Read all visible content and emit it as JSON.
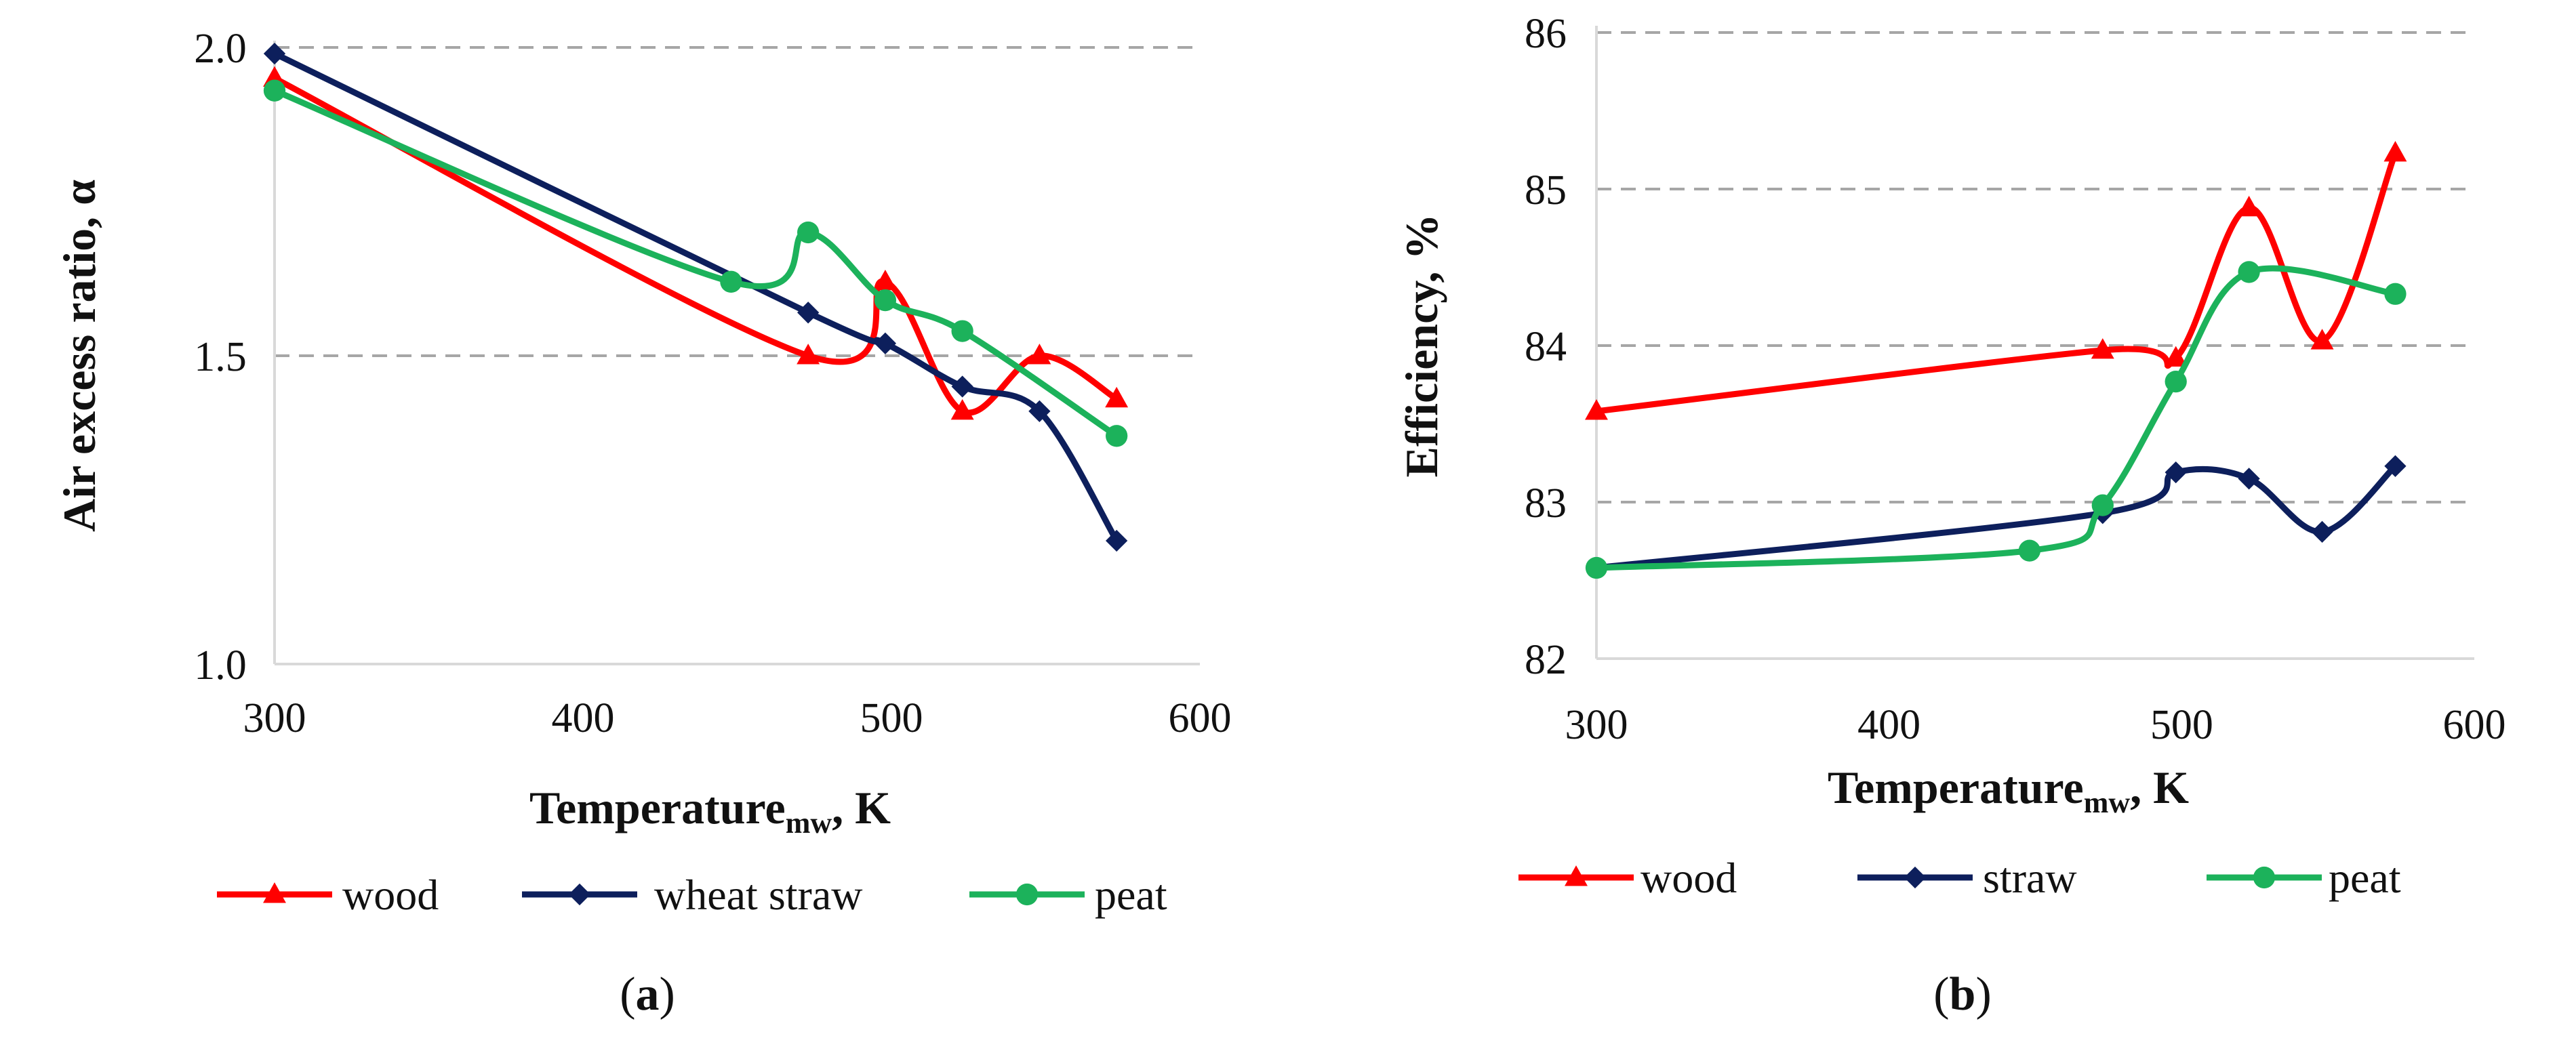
{
  "chart_data": [
    {
      "type": "line",
      "panel_label": {
        "open": "(",
        "letter": "a",
        "close": ")"
      },
      "xlabel": {
        "main": "Temperature",
        "sub": "mw",
        "rest": ", K"
      },
      "ylabel": "Air excess ratio, α",
      "xlim": [
        300,
        600
      ],
      "ylim": [
        1.0,
        2.0
      ],
      "xticks": [
        300,
        400,
        500,
        600
      ],
      "yticks": [
        "1.0",
        "1.5",
        "2.0"
      ],
      "grid_values": [
        1.5,
        2.0
      ],
      "legend_position": "bottom",
      "series": [
        {
          "name": "wood",
          "marker": "triangle",
          "color": "#ff0000",
          "x": [
            300,
            473,
            498,
            523,
            548,
            573
          ],
          "y": [
            1.95,
            1.5,
            1.62,
            1.41,
            1.5,
            1.43
          ]
        },
        {
          "name": "wheat straw",
          "marker": "diamond",
          "color": "#0d1f5c",
          "x": [
            300,
            473,
            498,
            523,
            548,
            573
          ],
          "y": [
            1.99,
            1.57,
            1.52,
            1.45,
            1.41,
            1.2
          ]
        },
        {
          "name": "peat",
          "marker": "circle",
          "color": "#1cb25b",
          "x": [
            300,
            448,
            473,
            498,
            523,
            573
          ],
          "y": [
            1.93,
            1.62,
            1.7,
            1.59,
            1.54,
            1.37
          ]
        }
      ]
    },
    {
      "type": "line",
      "panel_label": {
        "open": "(",
        "letter": "b",
        "close": ")"
      },
      "xlabel": {
        "main": "Temperature",
        "sub": "mw",
        "rest": ", K"
      },
      "ylabel": "Efficiency, %",
      "xlim": [
        300,
        600
      ],
      "ylim": [
        82,
        86
      ],
      "xticks": [
        300,
        400,
        500,
        600
      ],
      "yticks": [
        "82",
        "83",
        "84",
        "85",
        "86"
      ],
      "grid_values": [
        83,
        84,
        85,
        86
      ],
      "legend_position": "bottom",
      "series": [
        {
          "name": "wood",
          "marker": "triangle",
          "color": "#ff0000",
          "x": [
            300,
            473,
            498,
            523,
            548,
            573
          ],
          "y": [
            83.58,
            83.97,
            83.92,
            84.88,
            84.03,
            85.23
          ]
        },
        {
          "name": "straw",
          "marker": "diamond",
          "color": "#0d1f5c",
          "x": [
            300,
            473,
            498,
            523,
            548,
            573
          ],
          "y": [
            82.58,
            82.93,
            83.19,
            83.15,
            82.81,
            83.23
          ]
        },
        {
          "name": "peat",
          "marker": "circle",
          "color": "#1cb25b",
          "x": [
            300,
            448,
            473,
            498,
            523,
            573
          ],
          "y": [
            82.58,
            82.69,
            82.98,
            83.77,
            84.47,
            84.33
          ]
        }
      ]
    }
  ]
}
